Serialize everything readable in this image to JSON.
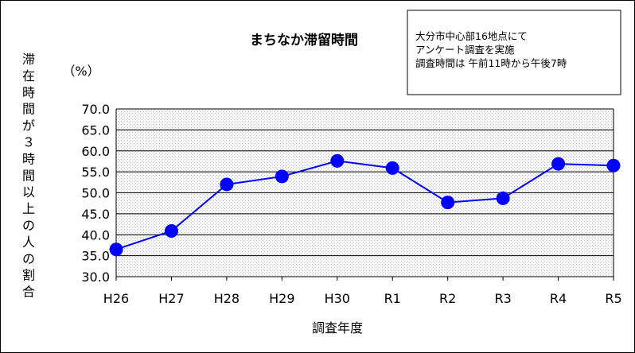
{
  "chart_data": {
    "type": "line",
    "title": "まちなか滞留時間",
    "ylabel": "滞在時間が３時間以上の人の割合",
    "yunit": "（%）",
    "xlabel": "調査年度",
    "annotation": [
      "大分市中心部16地点にて",
      "アンケート調査を実施",
      "調査時間は 午前11時から午後7時"
    ],
    "categories": [
      "H26",
      "H27",
      "H28",
      "H29",
      "H30",
      "R1",
      "R2",
      "R3",
      "R4",
      "R5"
    ],
    "values": [
      36.5,
      40.9,
      52.0,
      53.9,
      57.6,
      55.9,
      47.7,
      48.7,
      56.9,
      56.5
    ],
    "ylim": [
      30.0,
      70.0
    ],
    "yticks": [
      "30.0",
      "35.0",
      "40.0",
      "45.0",
      "50.0",
      "55.0",
      "60.0",
      "65.0",
      "70.0"
    ],
    "grid": true,
    "colors": {
      "line": "#0000ff",
      "marker": "#0000ff",
      "plot_bg": "#f2f2f2",
      "grid": "#000000"
    }
  }
}
